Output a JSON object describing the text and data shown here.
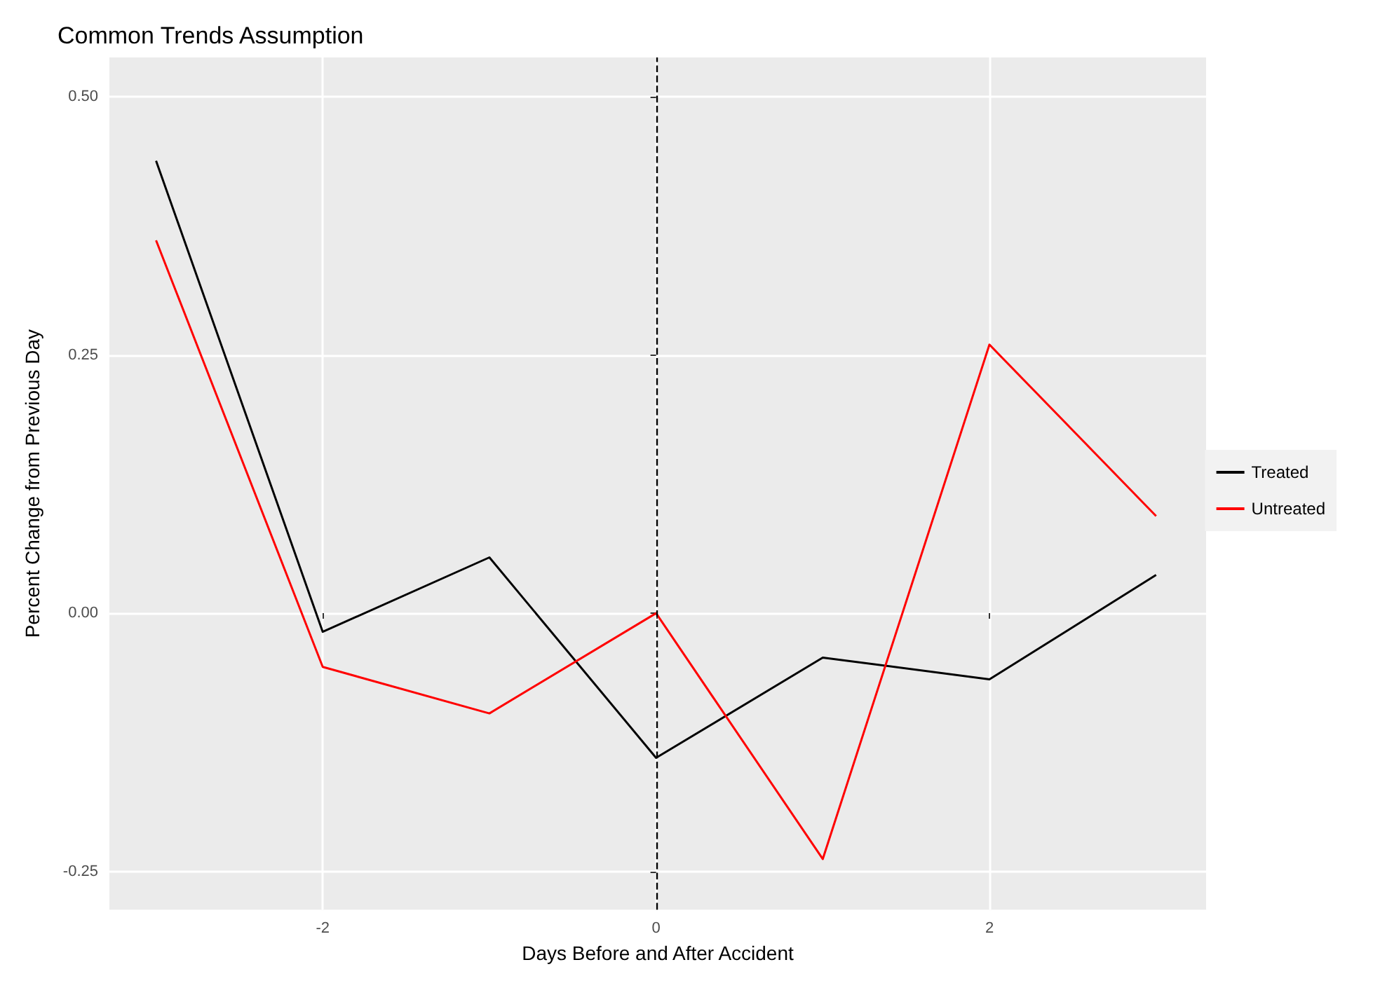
{
  "chart_data": {
    "type": "line",
    "title": "Common Trends Assumption",
    "xlabel": "Days Before and After Accident",
    "ylabel": "Percent Change from Previous Day",
    "x": [
      -3,
      -2,
      -1,
      0,
      1,
      2,
      3
    ],
    "series": [
      {
        "name": "Treated",
        "color": "#000000",
        "values": [
          0.438,
          -0.018,
          0.054,
          -0.14,
          -0.043,
          -0.064,
          0.037
        ]
      },
      {
        "name": "Untreated",
        "color": "#ff0000",
        "values": [
          0.361,
          -0.052,
          -0.097,
          0.0,
          -0.238,
          0.26,
          0.094
        ]
      }
    ],
    "xlim": [
      -3.28,
      3.3
    ],
    "xticks": [
      -2,
      0,
      2
    ],
    "ylim": [
      -0.287,
      0.538
    ],
    "yticks": [
      {
        "value": -0.25,
        "label": "-0.25"
      },
      {
        "value": 0,
        "label": "0.00"
      },
      {
        "value": 0.25,
        "label": "0.25"
      },
      {
        "value": 0.5,
        "label": "0.50"
      }
    ],
    "ref_lines": [
      {
        "axis": "x",
        "value": 0,
        "color": "#000000",
        "line_style": "dashed"
      }
    ],
    "grid": true,
    "legend": "right",
    "marker": "none",
    "line_style": "solid"
  }
}
